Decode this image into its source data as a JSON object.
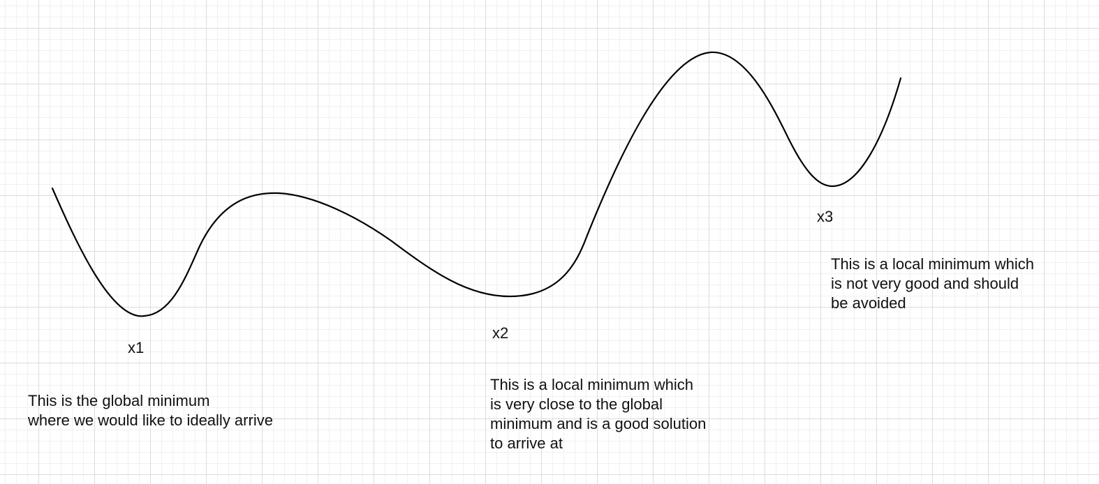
{
  "diagram": {
    "curve_color": "#000000",
    "points": [
      {
        "label": "x1",
        "note": "This is the global minimum\nwhere we would like to ideally arrive"
      },
      {
        "label": "x2",
        "note": "This is a local minimum which\nis very close to the global\nminimum and is a good solution\nto arrive at"
      },
      {
        "label": "x3",
        "note": "This is a local minimum which\nis not very good and should\nbe avoided"
      }
    ]
  }
}
